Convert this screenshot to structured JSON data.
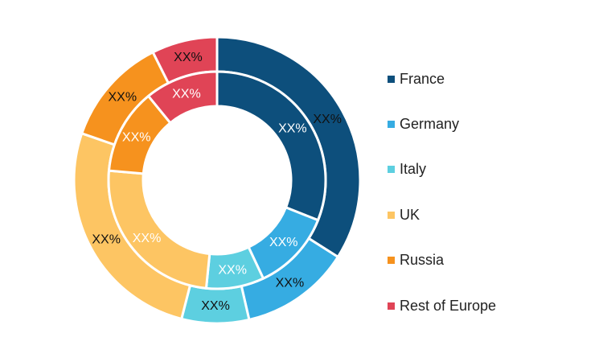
{
  "chart_data": {
    "type": "pie",
    "legend_position": "right",
    "categories": [
      "France",
      "Germany",
      "Italy",
      "UK",
      "Russia",
      "Rest of Europe"
    ],
    "colors": [
      "#0d4f7c",
      "#36ace2",
      "#5dcfe0",
      "#fdc563",
      "#f6921e",
      "#e04456"
    ],
    "series": [
      {
        "label_text": "XX%",
        "values": [
          34.0,
          12.4,
          7.6,
          26.3,
          12.3,
          7.4
        ]
      },
      {
        "label_text": "XX%",
        "values": [
          31.0,
          12.0,
          8.6,
          24.8,
          12.7,
          10.9
        ]
      }
    ]
  }
}
